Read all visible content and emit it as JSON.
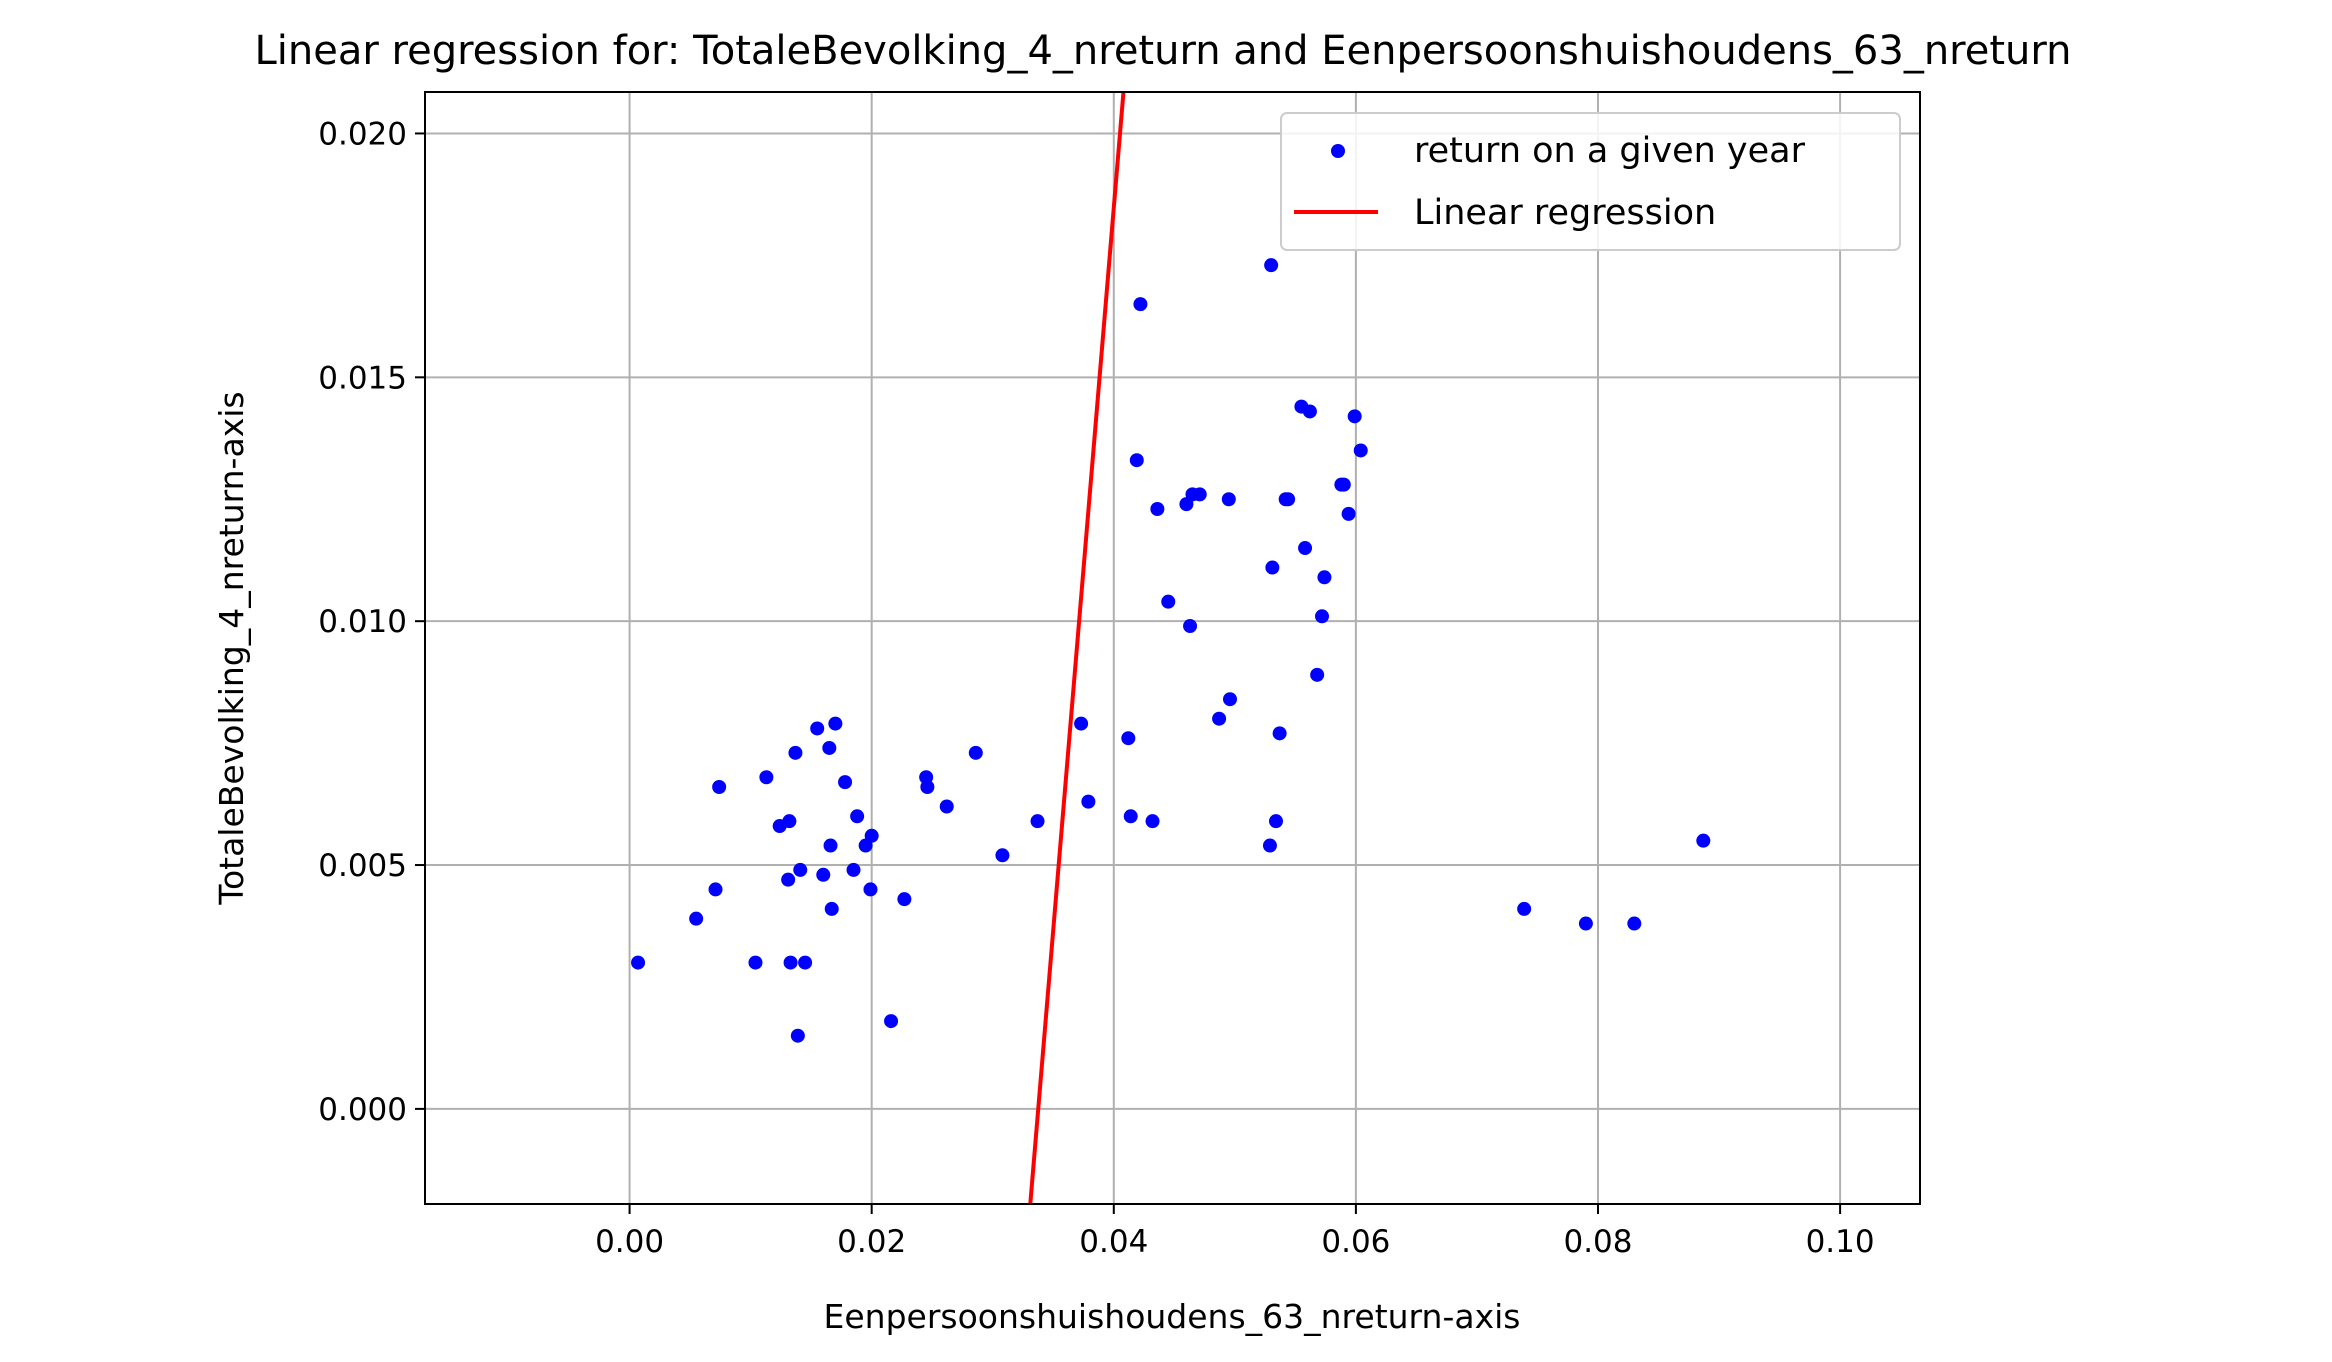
{
  "chart_data": {
    "type": "scatter",
    "title": "Linear regression for: TotaleBevolking_4_nreturn and Eenpersoonshuishoudens_63_nreturn",
    "xlabel": "Eenpersoonshuishoudens_63_nreturn-axis",
    "ylabel": "TotaleBevolking_4_nreturn-axis",
    "xlim": [
      -0.0169,
      0.1066
    ],
    "ylim": [
      -0.00195,
      0.02085
    ],
    "xticks": [
      0.0,
      0.02,
      0.04,
      0.06,
      0.08,
      0.1
    ],
    "xtick_labels": [
      "0.00",
      "0.02",
      "0.04",
      "0.06",
      "0.08",
      "0.10"
    ],
    "yticks": [
      0.0,
      0.005,
      0.01,
      0.015,
      0.02
    ],
    "ytick_labels": [
      "0.000",
      "0.005",
      "0.010",
      "0.015",
      "0.020"
    ],
    "grid": true,
    "legend_position": "top-right",
    "series": [
      {
        "name": "return on a given year",
        "kind": "scatter",
        "color": "#0000ff",
        "points": [
          [
            0.0007,
            0.003
          ],
          [
            0.0055,
            0.0039
          ],
          [
            0.0071,
            0.0045
          ],
          [
            0.0074,
            0.0066
          ],
          [
            0.0104,
            0.003
          ],
          [
            0.0113,
            0.0068
          ],
          [
            0.0124,
            0.0058
          ],
          [
            0.0131,
            0.0047
          ],
          [
            0.0132,
            0.0059
          ],
          [
            0.0133,
            0.003
          ],
          [
            0.0137,
            0.0073
          ],
          [
            0.0139,
            0.0015
          ],
          [
            0.0141,
            0.0049
          ],
          [
            0.0145,
            0.003
          ],
          [
            0.0155,
            0.0078
          ],
          [
            0.016,
            0.0048
          ],
          [
            0.0165,
            0.0074
          ],
          [
            0.0166,
            0.0054
          ],
          [
            0.0167,
            0.0041
          ],
          [
            0.017,
            0.0079
          ],
          [
            0.0178,
            0.0067
          ],
          [
            0.0185,
            0.0049
          ],
          [
            0.0188,
            0.006
          ],
          [
            0.0195,
            0.0054
          ],
          [
            0.0199,
            0.0045
          ],
          [
            0.02,
            0.0056
          ],
          [
            0.0216,
            0.0018
          ],
          [
            0.0227,
            0.0043
          ],
          [
            0.0245,
            0.0068
          ],
          [
            0.0246,
            0.0066
          ],
          [
            0.0262,
            0.0062
          ],
          [
            0.0286,
            0.0073
          ],
          [
            0.0308,
            0.0052
          ],
          [
            0.0337,
            0.0059
          ],
          [
            0.0373,
            0.0079
          ],
          [
            0.0379,
            0.0063
          ],
          [
            0.0412,
            0.0076
          ],
          [
            0.0414,
            0.006
          ],
          [
            0.0419,
            0.0133
          ],
          [
            0.0422,
            0.0165
          ],
          [
            0.0432,
            0.0059
          ],
          [
            0.0436,
            0.0123
          ],
          [
            0.0445,
            0.0104
          ],
          [
            0.046,
            0.0124
          ],
          [
            0.0463,
            0.0099
          ],
          [
            0.0465,
            0.0126
          ],
          [
            0.0471,
            0.0126
          ],
          [
            0.0487,
            0.008
          ],
          [
            0.0495,
            0.0125
          ],
          [
            0.0496,
            0.0084
          ],
          [
            0.0529,
            0.0054
          ],
          [
            0.053,
            0.0173
          ],
          [
            0.0531,
            0.0111
          ],
          [
            0.0534,
            0.0059
          ],
          [
            0.0537,
            0.0077
          ],
          [
            0.0542,
            0.0125
          ],
          [
            0.0544,
            0.0125
          ],
          [
            0.0555,
            0.0144
          ],
          [
            0.0558,
            0.0115
          ],
          [
            0.0562,
            0.0143
          ],
          [
            0.0568,
            0.0089
          ],
          [
            0.0572,
            0.0101
          ],
          [
            0.0574,
            0.0109
          ],
          [
            0.0588,
            0.0128
          ],
          [
            0.059,
            0.0128
          ],
          [
            0.0594,
            0.0122
          ],
          [
            0.0599,
            0.0142
          ],
          [
            0.0604,
            0.0135
          ],
          [
            0.0739,
            0.0041
          ],
          [
            0.079,
            0.0038
          ],
          [
            0.083,
            0.0038
          ],
          [
            0.0887,
            0.0055
          ]
        ]
      },
      {
        "name": "Linear regression",
        "kind": "line",
        "color": "#ff0000",
        "points": [
          [
            0.0331,
            -0.00195
          ],
          [
            0.0408,
            0.02085
          ]
        ]
      }
    ]
  }
}
